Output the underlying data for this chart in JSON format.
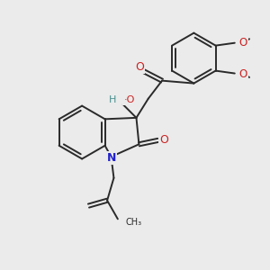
{
  "background_color": "#ebebeb",
  "line_color": "#2a2a2a",
  "bond_lw": 1.4,
  "atoms": {
    "N": {
      "color": "#2222cc"
    },
    "O": {
      "color": "#cc2222"
    },
    "H": {
      "color": "#4a9090"
    },
    "C": {
      "color": "#2a2a2a"
    }
  },
  "xlim": [
    0,
    10
  ],
  "ylim": [
    0,
    10
  ]
}
